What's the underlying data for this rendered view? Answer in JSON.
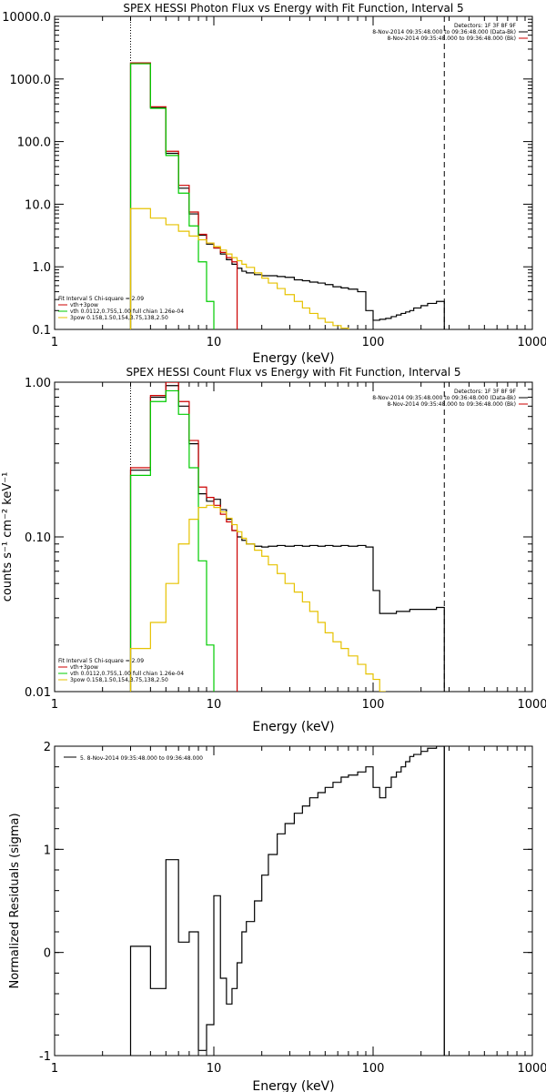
{
  "colors": {
    "axis": "#000000",
    "data": "#000000",
    "model_total": "#cc0000",
    "thermal": "#00cc00",
    "power_law": "#e6c200",
    "threshold_line": "#000000"
  },
  "chart_data": [
    {
      "type": "line",
      "title": "SPEX HESSI Photon Flux vs Energy with Fit Function, Interval 5",
      "xlabel": "Energy (keV)",
      "ylabel": "",
      "x_scale": "log",
      "y_scale": "log",
      "xlim": [
        1,
        1000
      ],
      "ylim": [
        0.1,
        10000
      ],
      "x_ticks": [
        1,
        10,
        100,
        1000
      ],
      "x_tick_labels": [
        "1",
        "10",
        "100",
        "1000"
      ],
      "y_ticks": [
        0.1,
        1,
        10,
        100,
        1000,
        10000
      ],
      "y_tick_labels": [
        "0.1",
        "1.0",
        "10.0",
        "100.0",
        "1000.0",
        "10000.0"
      ],
      "legend_top_right": [
        "Detectors: 1F 3F 8F 9F",
        "8-Nov-2014 09:35:48.000 to 09:36:48.000 (Data-Bk)",
        "8-Nov-2014 09:35:48.000 to 09:36:48.000 (Bk)"
      ],
      "legend_bottom_left": [
        "Fit Interval 5   Chi-square = 2.09",
        "vth+3pow",
        "vth 0.0112,0.755,1.00  full chian 1.26e-04",
        "3pow 0.158,1.50,154,3.75,138,2.50"
      ],
      "vlines": [
        {
          "x": 3,
          "style": "dotted"
        },
        {
          "x": 280,
          "style": "dashed"
        }
      ],
      "series": [
        {
          "name": "Data-Bk",
          "color": "#000000",
          "style": "step",
          "x": [
            3,
            4,
            5,
            6,
            7,
            8,
            9,
            10,
            11,
            12,
            13,
            14,
            15,
            16,
            18,
            20,
            22,
            25,
            28,
            32,
            36,
            40,
            45,
            50,
            56,
            63,
            70,
            80,
            90,
            100,
            110,
            120,
            130,
            140,
            150,
            160,
            170,
            180,
            200,
            220,
            250,
            280
          ],
          "values": [
            1800,
            350,
            65,
            18,
            7,
            3.2,
            2.3,
            2.0,
            1.6,
            1.3,
            1.1,
            0.95,
            0.85,
            0.8,
            0.75,
            0.72,
            0.72,
            0.7,
            0.68,
            0.62,
            0.6,
            0.57,
            0.55,
            0.52,
            0.48,
            0.46,
            0.44,
            0.4,
            0.2,
            0.14,
            0.145,
            0.15,
            0.16,
            0.17,
            0.18,
            0.19,
            0.2,
            0.22,
            0.24,
            0.26,
            0.28,
            0.28
          ]
        },
        {
          "name": "vth+3pow",
          "color": "#cc0000",
          "style": "step",
          "x": [
            3,
            4,
            5,
            6,
            7,
            8,
            9,
            10,
            11,
            12,
            13,
            14
          ],
          "values": [
            1800,
            360,
            70,
            20,
            7.5,
            3.3,
            2.4,
            2.0,
            1.7,
            1.4,
            1.2,
            1.05
          ]
        },
        {
          "name": "vth",
          "color": "#00cc00",
          "style": "step",
          "x": [
            3,
            4,
            5,
            6,
            7,
            8,
            9,
            10
          ],
          "values": [
            1750,
            340,
            60,
            15,
            4.5,
            1.2,
            0.28,
            0.1
          ]
        },
        {
          "name": "3pow",
          "color": "#e6c200",
          "style": "step",
          "x": [
            3,
            4,
            5,
            6,
            7,
            8,
            9,
            10,
            11,
            12,
            13,
            14,
            15,
            16,
            18,
            20,
            22,
            25,
            28,
            32,
            36,
            40,
            45,
            50,
            56,
            63,
            70
          ],
          "values": [
            8.5,
            6.0,
            4.7,
            3.7,
            3.1,
            2.7,
            2.4,
            2.1,
            1.85,
            1.6,
            1.4,
            1.25,
            1.1,
            0.98,
            0.8,
            0.66,
            0.55,
            0.45,
            0.36,
            0.28,
            0.22,
            0.18,
            0.15,
            0.13,
            0.115,
            0.105,
            0.1
          ]
        }
      ]
    },
    {
      "type": "line",
      "title": "SPEX HESSI Count Flux vs Energy with Fit Function, Interval 5",
      "xlabel": "Energy (keV)",
      "ylabel": "counts s⁻¹ cm⁻² keV⁻¹",
      "x_scale": "log",
      "y_scale": "log",
      "xlim": [
        1,
        1000
      ],
      "ylim": [
        0.01,
        1.0
      ],
      "x_ticks": [
        1,
        10,
        100,
        1000
      ],
      "x_tick_labels": [
        "1",
        "10",
        "100",
        "1000"
      ],
      "y_ticks": [
        0.01,
        0.1,
        1.0
      ],
      "y_tick_labels": [
        "0.01",
        "0.10",
        "1.00"
      ],
      "legend_top_right": [
        "Detectors: 1F 3F 8F 9F",
        "8-Nov-2014 09:35:48.000 to 09:36:48.000 (Data-Bk)",
        "8-Nov-2014 09:35:48.000 to 09:36:48.000 (Bk)"
      ],
      "legend_bottom_left": [
        "Fit Interval 5   Chi-square = 2.09",
        "vth+3pow",
        "vth 0.0112,0.755,1.00  full chian 1.26e-04",
        "3pow 0.158,1.50,154,3.75,138,2.50"
      ],
      "vlines": [
        {
          "x": 3,
          "style": "dotted"
        },
        {
          "x": 280,
          "style": "dashed"
        }
      ],
      "series": [
        {
          "name": "Data-Bk",
          "color": "#000000",
          "style": "step",
          "x": [
            3,
            4,
            5,
            6,
            7,
            8,
            9,
            10,
            11,
            12,
            13,
            14,
            15,
            16,
            18,
            20,
            22,
            25,
            28,
            32,
            36,
            40,
            45,
            50,
            56,
            63,
            70,
            80,
            90,
            100,
            110,
            120,
            130,
            140,
            150,
            160,
            170,
            180,
            200,
            220,
            250,
            280
          ],
          "values": [
            0.27,
            0.8,
            0.95,
            0.7,
            0.4,
            0.19,
            0.17,
            0.175,
            0.15,
            0.13,
            0.11,
            0.1,
            0.095,
            0.09,
            0.087,
            0.086,
            0.087,
            0.088,
            0.087,
            0.088,
            0.087,
            0.088,
            0.087,
            0.088,
            0.087,
            0.088,
            0.087,
            0.088,
            0.086,
            0.045,
            0.032,
            0.032,
            0.032,
            0.033,
            0.033,
            0.033,
            0.034,
            0.034,
            0.034,
            0.034,
            0.035,
            0.035
          ]
        },
        {
          "name": "vth+3pow",
          "color": "#cc0000",
          "style": "step",
          "x": [
            3,
            4,
            5,
            6,
            7,
            8,
            9,
            10,
            11,
            12,
            13,
            14
          ],
          "values": [
            0.28,
            0.82,
            1.0,
            0.75,
            0.42,
            0.21,
            0.18,
            0.16,
            0.14,
            0.125,
            0.11,
            0.1
          ]
        },
        {
          "name": "vth",
          "color": "#00cc00",
          "style": "step",
          "x": [
            3,
            4,
            5,
            6,
            7,
            8,
            9,
            10
          ],
          "values": [
            0.25,
            0.75,
            0.88,
            0.62,
            0.28,
            0.07,
            0.02,
            0.01
          ]
        },
        {
          "name": "3pow",
          "color": "#e6c200",
          "style": "step",
          "x": [
            3,
            4,
            5,
            6,
            7,
            8,
            9,
            10,
            11,
            12,
            13,
            14,
            15,
            16,
            18,
            20,
            22,
            25,
            28,
            32,
            36,
            40,
            45,
            50,
            56,
            63,
            70,
            80,
            90,
            100,
            110,
            120
          ],
          "values": [
            0.019,
            0.028,
            0.05,
            0.09,
            0.13,
            0.155,
            0.16,
            0.155,
            0.145,
            0.132,
            0.12,
            0.108,
            0.098,
            0.09,
            0.082,
            0.075,
            0.066,
            0.058,
            0.05,
            0.044,
            0.038,
            0.033,
            0.028,
            0.024,
            0.021,
            0.019,
            0.017,
            0.015,
            0.013,
            0.012,
            0.01,
            0.01
          ]
        }
      ]
    },
    {
      "type": "line",
      "title": "",
      "xlabel": "Energy (keV)",
      "ylabel": "Normalized Residuals (sigma)",
      "x_scale": "log",
      "y_scale": "linear",
      "xlim": [
        1,
        1000
      ],
      "ylim": [
        -1,
        2
      ],
      "x_ticks": [
        1,
        10,
        100,
        1000
      ],
      "x_tick_labels": [
        "1",
        "10",
        "100",
        "1000"
      ],
      "y_ticks": [
        -1,
        0,
        1,
        2
      ],
      "y_tick_labels": [
        "-1",
        "0",
        "1",
        "2"
      ],
      "legend_top_left": [
        "5.  8-Nov-2014 09:35:48.000 to 09:36:48.000"
      ],
      "vlines": [
        {
          "x": 280,
          "style": "solid"
        }
      ],
      "series": [
        {
          "name": "5.  8-Nov-2014 09:35:48.000 to 09:36:48.000",
          "color": "#000000",
          "style": "step",
          "x": [
            3,
            4,
            5,
            6,
            7,
            8,
            9,
            10,
            11,
            12,
            13,
            14,
            15,
            16,
            18,
            20,
            22,
            25,
            28,
            32,
            36,
            40,
            45,
            50,
            56,
            63,
            70,
            80,
            90,
            100,
            110,
            120,
            130,
            140,
            150,
            160,
            170,
            180,
            200,
            220,
            250,
            280
          ],
          "values": [
            0.06,
            -0.35,
            0.9,
            0.1,
            0.2,
            -0.95,
            -0.7,
            0.55,
            -0.25,
            -0.5,
            -0.35,
            -0.1,
            0.2,
            0.3,
            0.5,
            0.75,
            0.95,
            1.15,
            1.25,
            1.35,
            1.42,
            1.5,
            1.55,
            1.6,
            1.65,
            1.7,
            1.72,
            1.75,
            1.8,
            1.6,
            1.5,
            1.6,
            1.7,
            1.75,
            1.8,
            1.85,
            1.9,
            1.92,
            1.95,
            1.98,
            2.0,
            2.0
          ]
        }
      ]
    }
  ]
}
